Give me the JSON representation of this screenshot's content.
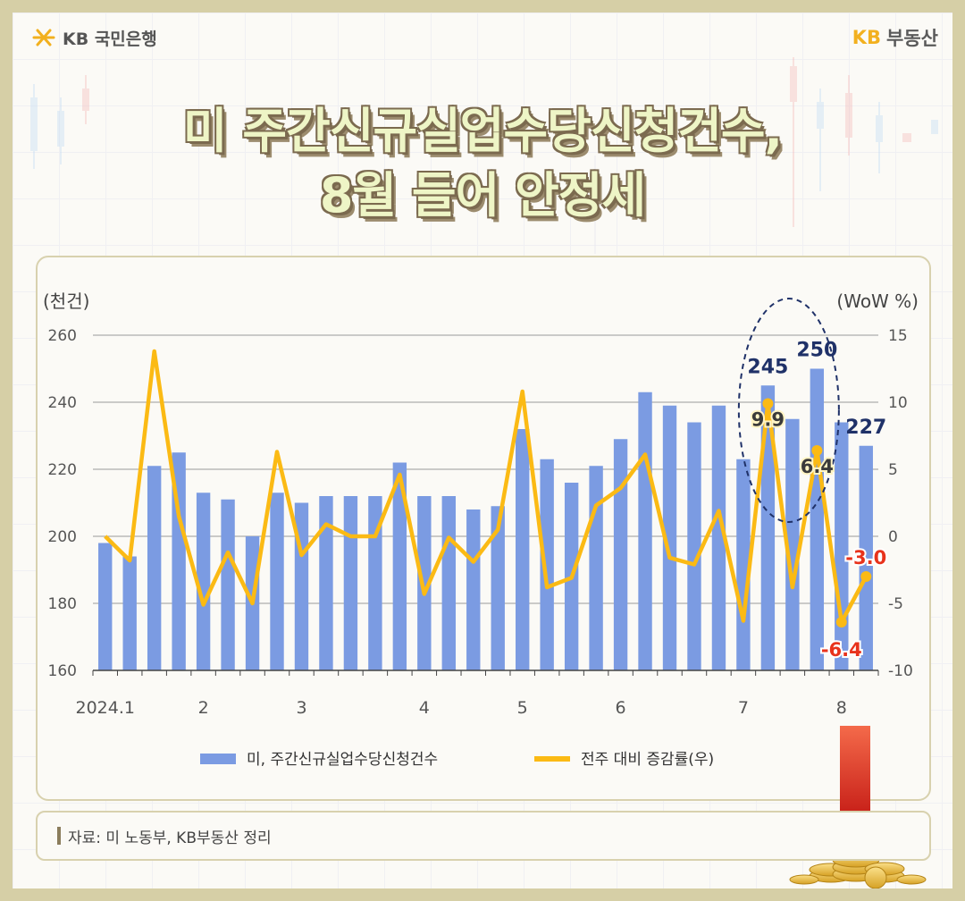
{
  "header": {
    "bank_logo_text": "KB 국민은행",
    "brand_kb": "KB",
    "brand_name": "부동산"
  },
  "title": {
    "line1": "미 주간신규실업수당신청건수,",
    "line2": "8월 들어 안정세"
  },
  "source_note": "자료: 미 노동부, KB부동산 정리",
  "colors": {
    "bar": "#7b9be2",
    "line": "#fbba14",
    "highlight_label": "#1f3168",
    "negative_label": "#e8331c",
    "ellipse": "#1f3168"
  },
  "chart_data": {
    "type": "bar",
    "title": "",
    "y_left_label": "(천건)",
    "y_right_label": "(WoW %)",
    "y_left_range": [
      160,
      260
    ],
    "y_left_ticks": [
      "160",
      "180",
      "200",
      "220",
      "240",
      "260"
    ],
    "y_right_range": [
      -10,
      15
    ],
    "y_right_ticks": [
      "-10",
      "-5",
      "0",
      "5",
      "10",
      "15"
    ],
    "x_tick_labels": [
      {
        "index": 0,
        "label": "2024.1"
      },
      {
        "index": 4,
        "label": "2"
      },
      {
        "index": 8,
        "label": "3"
      },
      {
        "index": 13,
        "label": "4"
      },
      {
        "index": 17,
        "label": "5"
      },
      {
        "index": 21,
        "label": "6"
      },
      {
        "index": 26,
        "label": "7"
      },
      {
        "index": 30,
        "label": "8"
      }
    ],
    "series": [
      {
        "name": "미, 주간신규실업수당신청건수",
        "type": "bar",
        "axis": "left",
        "values": [
          198,
          194,
          221,
          225,
          213,
          211,
          200,
          213,
          210,
          212,
          212,
          212,
          222,
          212,
          212,
          208,
          209,
          232,
          223,
          216,
          221,
          229,
          243,
          239,
          234,
          239,
          223,
          245,
          235,
          250,
          234,
          227
        ]
      },
      {
        "name": "전주 대비 증감률(우)",
        "type": "line",
        "axis": "right",
        "values": [
          0.0,
          -1.8,
          13.8,
          1.5,
          -5.1,
          -1.2,
          -5.0,
          6.3,
          -1.4,
          0.9,
          0.0,
          0.0,
          4.6,
          -4.3,
          -0.1,
          -1.9,
          0.5,
          10.8,
          -3.8,
          -3.1,
          2.3,
          3.6,
          6.1,
          -1.6,
          -2.1,
          1.9,
          -6.3,
          9.9,
          -3.8,
          6.4,
          -6.4,
          -3.0
        ]
      }
    ],
    "annotations": [
      {
        "series": "bar",
        "index": 27,
        "text": "245"
      },
      {
        "series": "bar",
        "index": 29,
        "text": "250"
      },
      {
        "series": "bar",
        "index": 31,
        "text": "227"
      },
      {
        "series": "line",
        "index": 27,
        "text": "9.9"
      },
      {
        "series": "line",
        "index": 29,
        "text": "6.4"
      },
      {
        "series": "line",
        "index": 30,
        "text": "-6.4"
      },
      {
        "series": "line",
        "index": 31,
        "text": "-3.0"
      }
    ],
    "grid": "horizontal",
    "legend": "bottom"
  }
}
